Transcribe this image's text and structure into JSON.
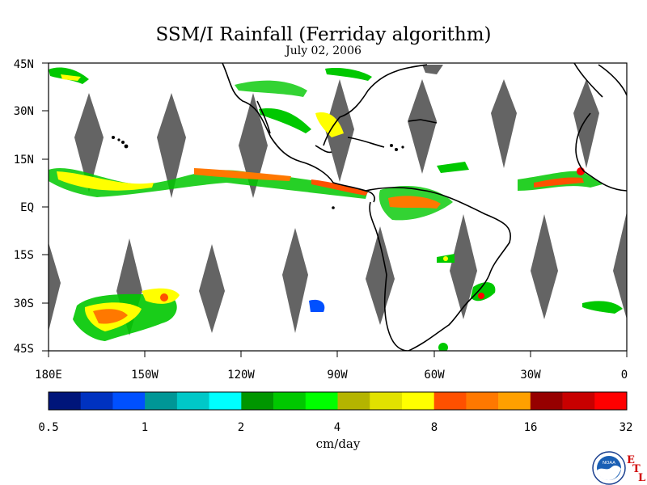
{
  "title": "SSM/I Rainfall (Ferriday algorithm)",
  "date": "July 02, 2006",
  "lat_labels": [
    "45N",
    "30N",
    "15N",
    "EQ",
    "15S",
    "30S",
    "45S"
  ],
  "lon_labels": [
    "180E",
    "150W",
    "120W",
    "90W",
    "60W",
    "30W",
    "0"
  ],
  "colorbar": {
    "colors": [
      "#00157a",
      "#0032c0",
      "#0050ff",
      "#009696",
      "#00c8c8",
      "#00ffff",
      "#009600",
      "#00c800",
      "#00ff00",
      "#b4b400",
      "#e1e100",
      "#ffff00",
      "#ff5000",
      "#ff7800",
      "#ffa000",
      "#960000",
      "#c80000",
      "#ff0000"
    ],
    "tick_labels": [
      "0.5",
      "1",
      "2",
      "4",
      "8",
      "16",
      "32"
    ],
    "unit": "cm/day"
  },
  "logo": {
    "badge": "NOAA",
    "etl": [
      "E",
      "T",
      "L"
    ]
  }
}
